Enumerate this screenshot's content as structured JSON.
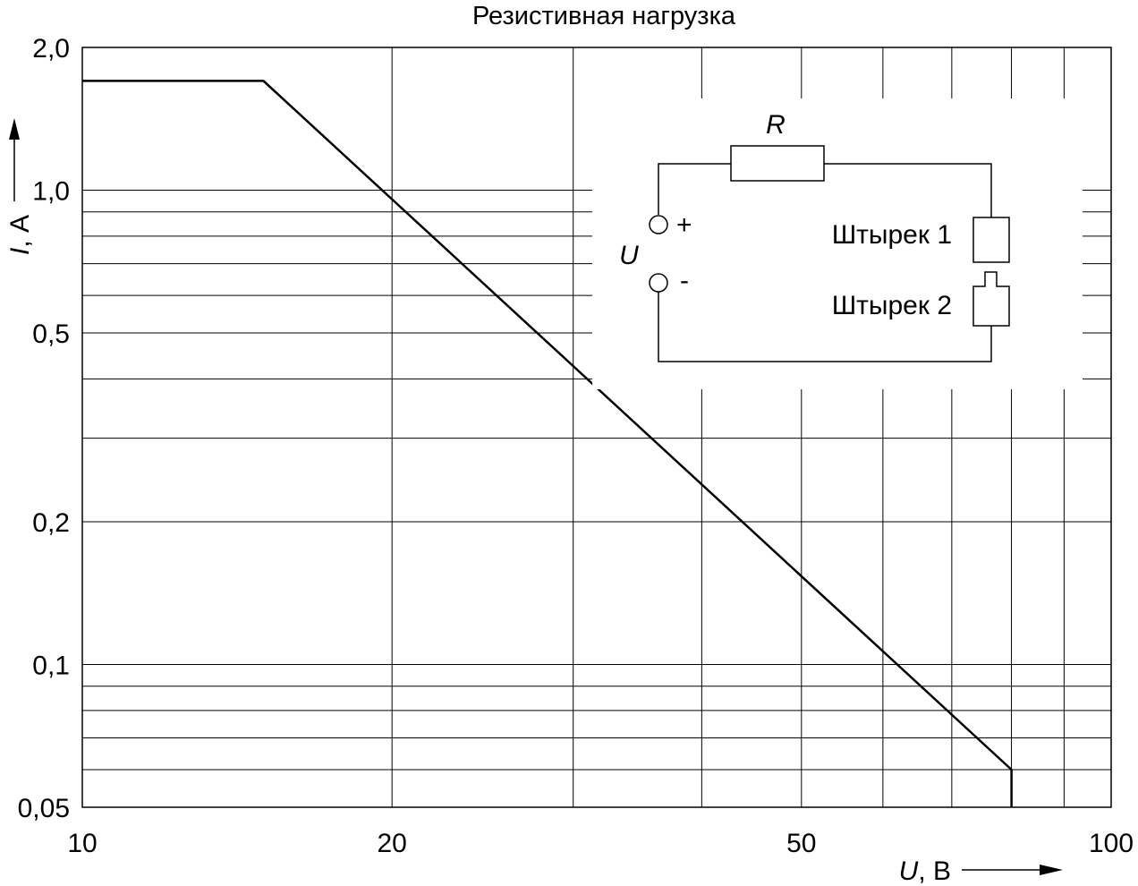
{
  "chart_data": {
    "type": "line",
    "title": "Резистивная нагрузка",
    "x_scale": "log",
    "y_scale": "log",
    "xlim": [
      10,
      100
    ],
    "ylim": [
      0.05,
      2.0
    ],
    "x_ticks": [
      {
        "value": 10,
        "label": "10"
      },
      {
        "value": 20,
        "label": "20"
      },
      {
        "value": 50,
        "label": "50"
      },
      {
        "value": 100,
        "label": "100"
      }
    ],
    "y_ticks": [
      {
        "value": 0.05,
        "label": "0,05"
      },
      {
        "value": 0.1,
        "label": "0,1"
      },
      {
        "value": 0.2,
        "label": "0,2"
      },
      {
        "value": 0.5,
        "label": "0,5"
      },
      {
        "value": 1.0,
        "label": "1,0"
      },
      {
        "value": 2.0,
        "label": "2,0"
      }
    ],
    "x_grid": [
      10,
      20,
      30,
      40,
      50,
      60,
      70,
      80,
      90,
      100
    ],
    "y_grid": [
      0.05,
      0.06,
      0.07,
      0.08,
      0.09,
      0.1,
      0.2,
      0.3,
      0.4,
      0.5,
      0.6,
      0.7,
      0.8,
      0.9,
      1.0,
      2.0
    ],
    "grid": true,
    "xlabel_italic": "U",
    "xlabel_rest": ", В",
    "ylabel_italic": "I",
    "ylabel_rest": ", А",
    "series": [
      {
        "x": [
          10,
          15,
          80,
          80
        ],
        "y": [
          1.7,
          1.7,
          0.06,
          0.05
        ]
      }
    ]
  },
  "inset": {
    "resistor_label": "R",
    "voltage_label": "U",
    "plus_label": "+",
    "minus_label": "-",
    "pin1_label": "Штырек 1",
    "pin2_label": "Штырек 2"
  }
}
